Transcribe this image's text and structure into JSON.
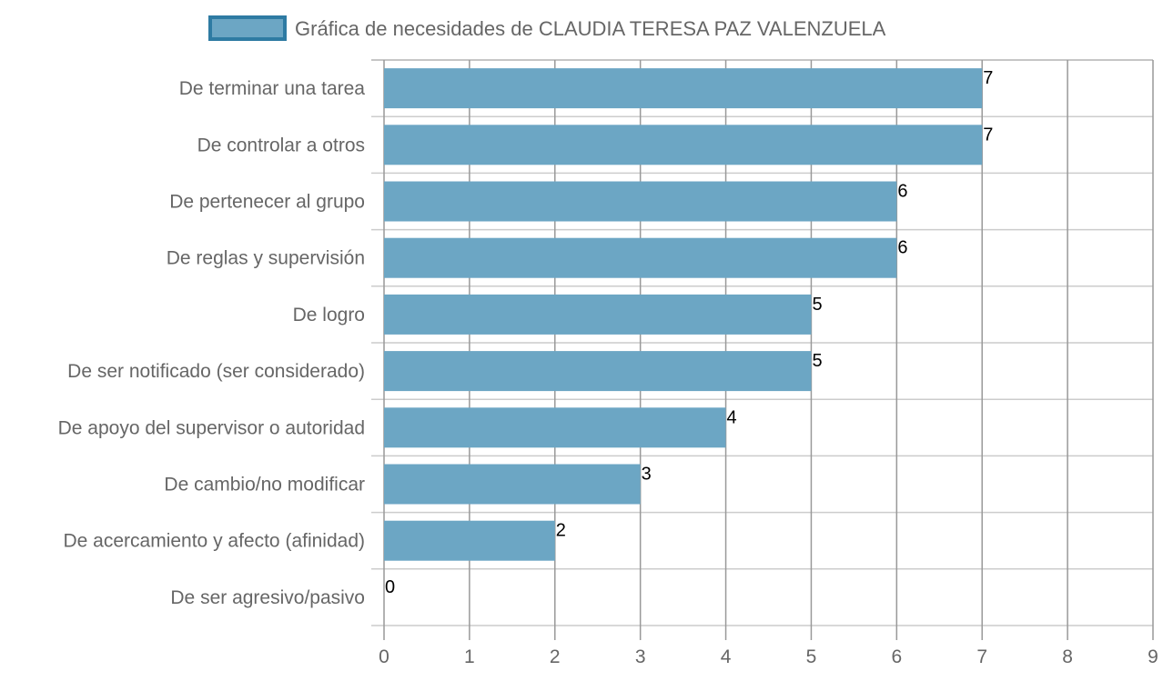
{
  "chart_data": {
    "type": "bar",
    "orientation": "horizontal",
    "categories": [
      "De terminar una tarea",
      "De controlar a otros",
      "De pertenecer al grupo",
      "De reglas y supervisión",
      "De logro",
      "De ser notificado (ser considerado)",
      "De apoyo del supervisor o autoridad",
      "De cambio/no modificar",
      "De acercamiento y afecto (afinidad)",
      "De ser agresivo/pasivo"
    ],
    "series": [
      {
        "name": "Gráfica de necesidades de CLAUDIA TERESA PAZ VALENZUELA",
        "values": [
          7,
          7,
          6,
          6,
          5,
          5,
          4,
          3,
          2,
          0
        ]
      }
    ],
    "xlim": [
      0,
      9
    ],
    "xticks": [
      "0",
      "1",
      "2",
      "3",
      "4",
      "5",
      "6",
      "7",
      "8",
      "9"
    ],
    "grid": true,
    "legend_position": "top",
    "colors": {
      "bar_fill": "#6ca6c4",
      "bar_stroke": "#2e7ba3",
      "grid": "#cccccc",
      "major_grid": "#999999"
    }
  }
}
